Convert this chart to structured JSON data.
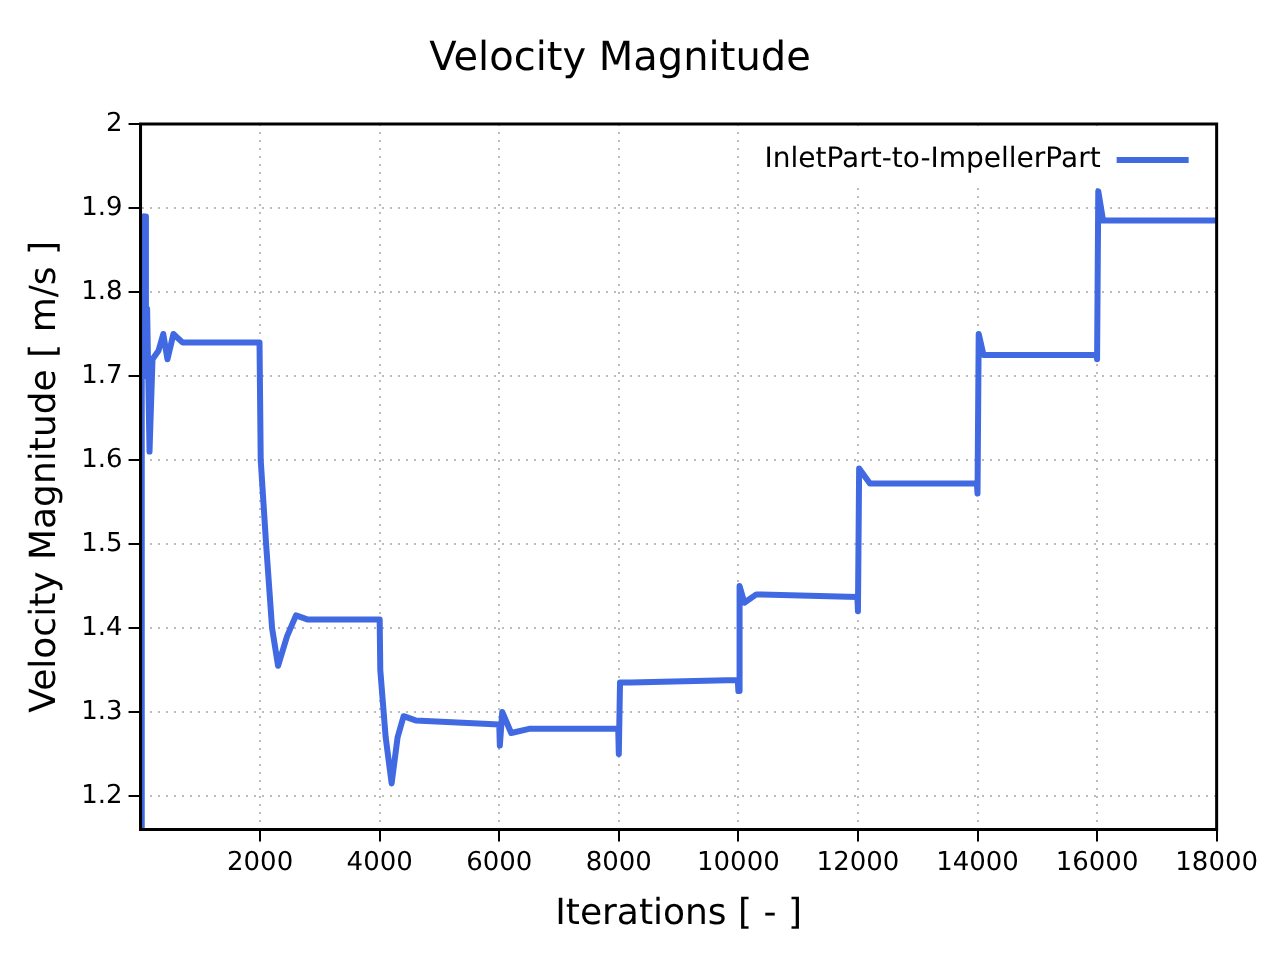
{
  "chart_data": {
    "type": "line",
    "title": "Velocity Magnitude",
    "xlabel": "Iterations [ - ]",
    "ylabel": "Velocity Magnitude [ m/s ]",
    "xlim": [
      0,
      18000
    ],
    "xticks": [
      2000,
      4000,
      6000,
      8000,
      10000,
      12000,
      14000,
      16000,
      18000
    ],
    "ylim": [
      1.16,
      2
    ],
    "yticks": [
      1.2,
      1.3,
      1.4,
      1.5,
      1.6,
      1.7,
      1.8,
      1.9,
      2
    ],
    "grid": true,
    "legend": "top right",
    "marker": "none",
    "line_style": "solid",
    "series": [
      {
        "name": "InletPart-to-ImpellerPart",
        "color": "#4169e1",
        "x": [
          0,
          20,
          60,
          90,
          110,
          150,
          200,
          300,
          380,
          450,
          550,
          700,
          1990,
          2010,
          2100,
          2200,
          2300,
          2450,
          2600,
          2800,
          4000,
          4010,
          4100,
          4200,
          4300,
          4400,
          4600,
          6000,
          6010,
          6050,
          6200,
          6500,
          7990,
          8000,
          8020,
          8200,
          9990,
          10000,
          10020,
          10100,
          10300,
          11990,
          12000,
          12020,
          12200,
          13990,
          14000,
          14020,
          14100,
          15990,
          16000,
          16020,
          16100,
          18000
        ],
        "values": [
          1.16,
          1.88,
          1.89,
          1.7,
          1.78,
          1.61,
          1.72,
          1.73,
          1.75,
          1.72,
          1.75,
          1.74,
          1.74,
          1.6,
          1.5,
          1.4,
          1.355,
          1.39,
          1.415,
          1.41,
          1.41,
          1.35,
          1.27,
          1.215,
          1.27,
          1.295,
          1.29,
          1.285,
          1.26,
          1.3,
          1.275,
          1.28,
          1.28,
          1.25,
          1.335,
          1.335,
          1.338,
          1.325,
          1.45,
          1.43,
          1.44,
          1.437,
          1.42,
          1.59,
          1.572,
          1.572,
          1.56,
          1.75,
          1.725,
          1.725,
          1.72,
          1.92,
          1.885,
          1.885
        ]
      }
    ]
  }
}
